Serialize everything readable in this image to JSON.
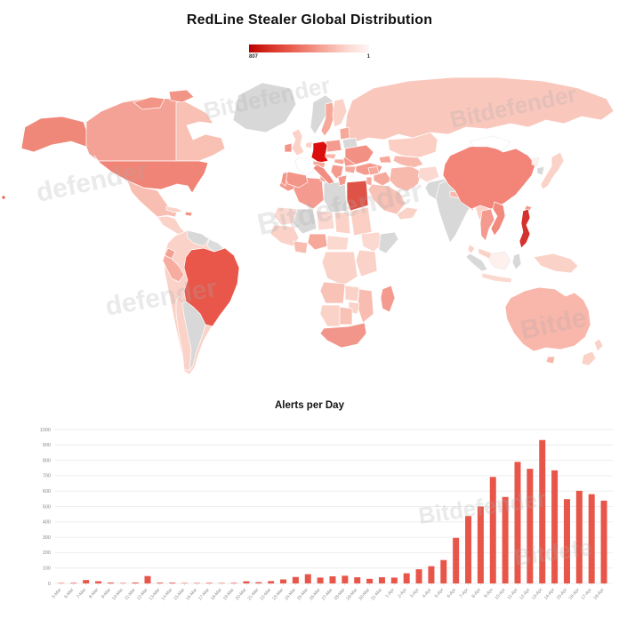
{
  "header": {
    "title": "RedLine Stealer Global Distribution"
  },
  "legend": {
    "max": "807",
    "min": "1"
  },
  "watermarks": [
    "Bitdefender",
    "Bitdefender",
    "defender",
    "Bitdefender",
    "defender",
    "Bitde",
    "Bitdefender",
    "Bitdefe"
  ],
  "map": {
    "max_value_label": "807",
    "min_value_label": "1",
    "colors": {
      "greenland": "#d8d8d8",
      "alaska": "#ef8878",
      "canada": "#f5a296",
      "canada-east": "#f9c0b4",
      "arctic-1": "#f29486",
      "arctic-2": "#f29486",
      "usa": "#f08476",
      "mexico": "#f9beb2",
      "central-america": "#fbd2c8",
      "cuba": "#fbd2c8",
      "hispaniola": "#f29486",
      "venezuela": "#d8d8d8",
      "guyanas": "#dcdcdc",
      "brazil": "#e8574a",
      "peru": "#f7aca0",
      "ecuador": "#f5a094",
      "bolivia": "#fbd2c8",
      "chile": "#fbd2c8",
      "argentina": "#d8d8d8",
      "uk": "#fbd2c8",
      "ireland": "#f29488",
      "norway": "#d8d8d8",
      "sweden": "#f6a89b",
      "finland": "#fbd2c8",
      "baltics": "#f6a89b",
      "belarus": "#d8d8d8",
      "poland": "#f49a8e",
      "germany": "#dc0d0d",
      "benelux": "#fbd2c8",
      "france": "#ffffff",
      "spain": "#f39588",
      "portugal": "#f39588",
      "italy": "#f28c80",
      "alpine": "#f6a89b",
      "czech": "#f8b9ad",
      "hungary": "#f6a89b",
      "balkans": "#f49a8e",
      "greece": "#f49a8e",
      "romania": "#f49a8e",
      "bulgaria": "#f6a89b",
      "ukraine": "#f29084",
      "turkey": "#f49a8e",
      "russia": "#f9c7bc",
      "kazakhstan": "#fbcfc4",
      "central-asia": "#f8b9ad",
      "caucasus": "#f6a89b",
      "syria": "#f6a89b",
      "iraq": "#f6a89b",
      "iran": "#f8b9ad",
      "saudi-arabia": "#f8c2b6",
      "yemen-oman": "#fbd2c8",
      "levant": "#f6a89b",
      "morocco": "#f49a8e",
      "algeria": "#f49a8e",
      "tunisia": "#f6a89b",
      "libya": "#d8d8d8",
      "egypt": "#df5246",
      "mauritania": "#fbd8d0",
      "mali": "#d8d8d8",
      "niger": "#fbd8d0",
      "chad": "#fbd2c8",
      "sudan": "#fbcfc4",
      "west-africa": "#fbd2c8",
      "ghana": "#f8bcb0",
      "nigeria": "#f6a89b",
      "cameroon": "#fbd8d0",
      "ethiopia": "#fbd8d0",
      "somalia": "#d8d8d8",
      "kenya": "#fbd2c8",
      "drc": "#fbd2c8",
      "angola": "#f8c2b6",
      "zambia": "#fbd2c8",
      "mozambique": "#f8bcb0",
      "zimbabwe": "#fbd2c8",
      "namibia": "#fbd2c8",
      "botswana": "#f8c2b6",
      "south-africa": "#f2968b",
      "madagascar": "#f49a8e",
      "afghanistan": "#fbd8d0",
      "pakistan": "#d8d8d8",
      "india": "#d8d8d8",
      "sri-lanka": "#fbd2c8",
      "nepal": "#f8b9ad",
      "bangladesh": "#f6a89b",
      "myanmar": "#fbd2c8",
      "china": "#f28478",
      "mongolia": "#ffffff",
      "north-korea": "#fdf0ed",
      "south-korea": "#d8d8d8",
      "japan": "#fbd2c8",
      "taiwan": "#f29488",
      "thailand": "#f49a8e",
      "vietnam": "#f18a7d",
      "malaysia": "#fbd2c8",
      "philippines": "#d4322e",
      "sumatra": "#d8d8d8",
      "borneo": "#fdf0ed",
      "java": "#fbd8d0",
      "sulawesi": "#d8d8d8",
      "new-guinea": "#fbd2c8",
      "australia": "#f9b6ab",
      "tasmania": "#f9b6ab",
      "nz-north": "#fbd2c8",
      "nz-south": "#fbd2c8",
      "hawaii": "#e8574a"
    }
  },
  "chart_data": {
    "type": "bar",
    "title": "Alerts per Day",
    "categories": [
      "5-Mar",
      "6-Mar",
      "7-Mar",
      "8-Mar",
      "9-Mar",
      "10-Mar",
      "11-Mar",
      "12-Mar",
      "13-Mar",
      "14-Mar",
      "15-Mar",
      "16-Mar",
      "17-Mar",
      "18-Mar",
      "19-Mar",
      "20-Mar",
      "21-Mar",
      "22-Mar",
      "23-Mar",
      "24-Mar",
      "25-Mar",
      "26-Mar",
      "27-Mar",
      "28-Mar",
      "29-Mar",
      "30-Mar",
      "31-Mar",
      "1-Apr",
      "2-Apr",
      "3-Apr",
      "4-Apr",
      "5-Apr",
      "6-Apr",
      "7-Apr",
      "8-Apr",
      "9-Apr",
      "10-Apr",
      "11-Apr",
      "12-Apr",
      "13-Apr",
      "14-Apr",
      "15-Apr",
      "16-Apr",
      "17-Apr",
      "18-Apr"
    ],
    "values": [
      1,
      4,
      22,
      14,
      6,
      3,
      6,
      48,
      5,
      5,
      3,
      3,
      4,
      2,
      4,
      14,
      8,
      15,
      26,
      42,
      60,
      38,
      46,
      50,
      40,
      30,
      40,
      38,
      66,
      92,
      112,
      152,
      296,
      438,
      500,
      692,
      562,
      790,
      745,
      932,
      735,
      548,
      602,
      580,
      538
    ],
    "xlabel": "",
    "ylabel": "",
    "ylim": [
      0,
      1000
    ],
    "ytick": 100,
    "grid": true,
    "legend_position": "none",
    "bar_color": "#e8564a"
  }
}
